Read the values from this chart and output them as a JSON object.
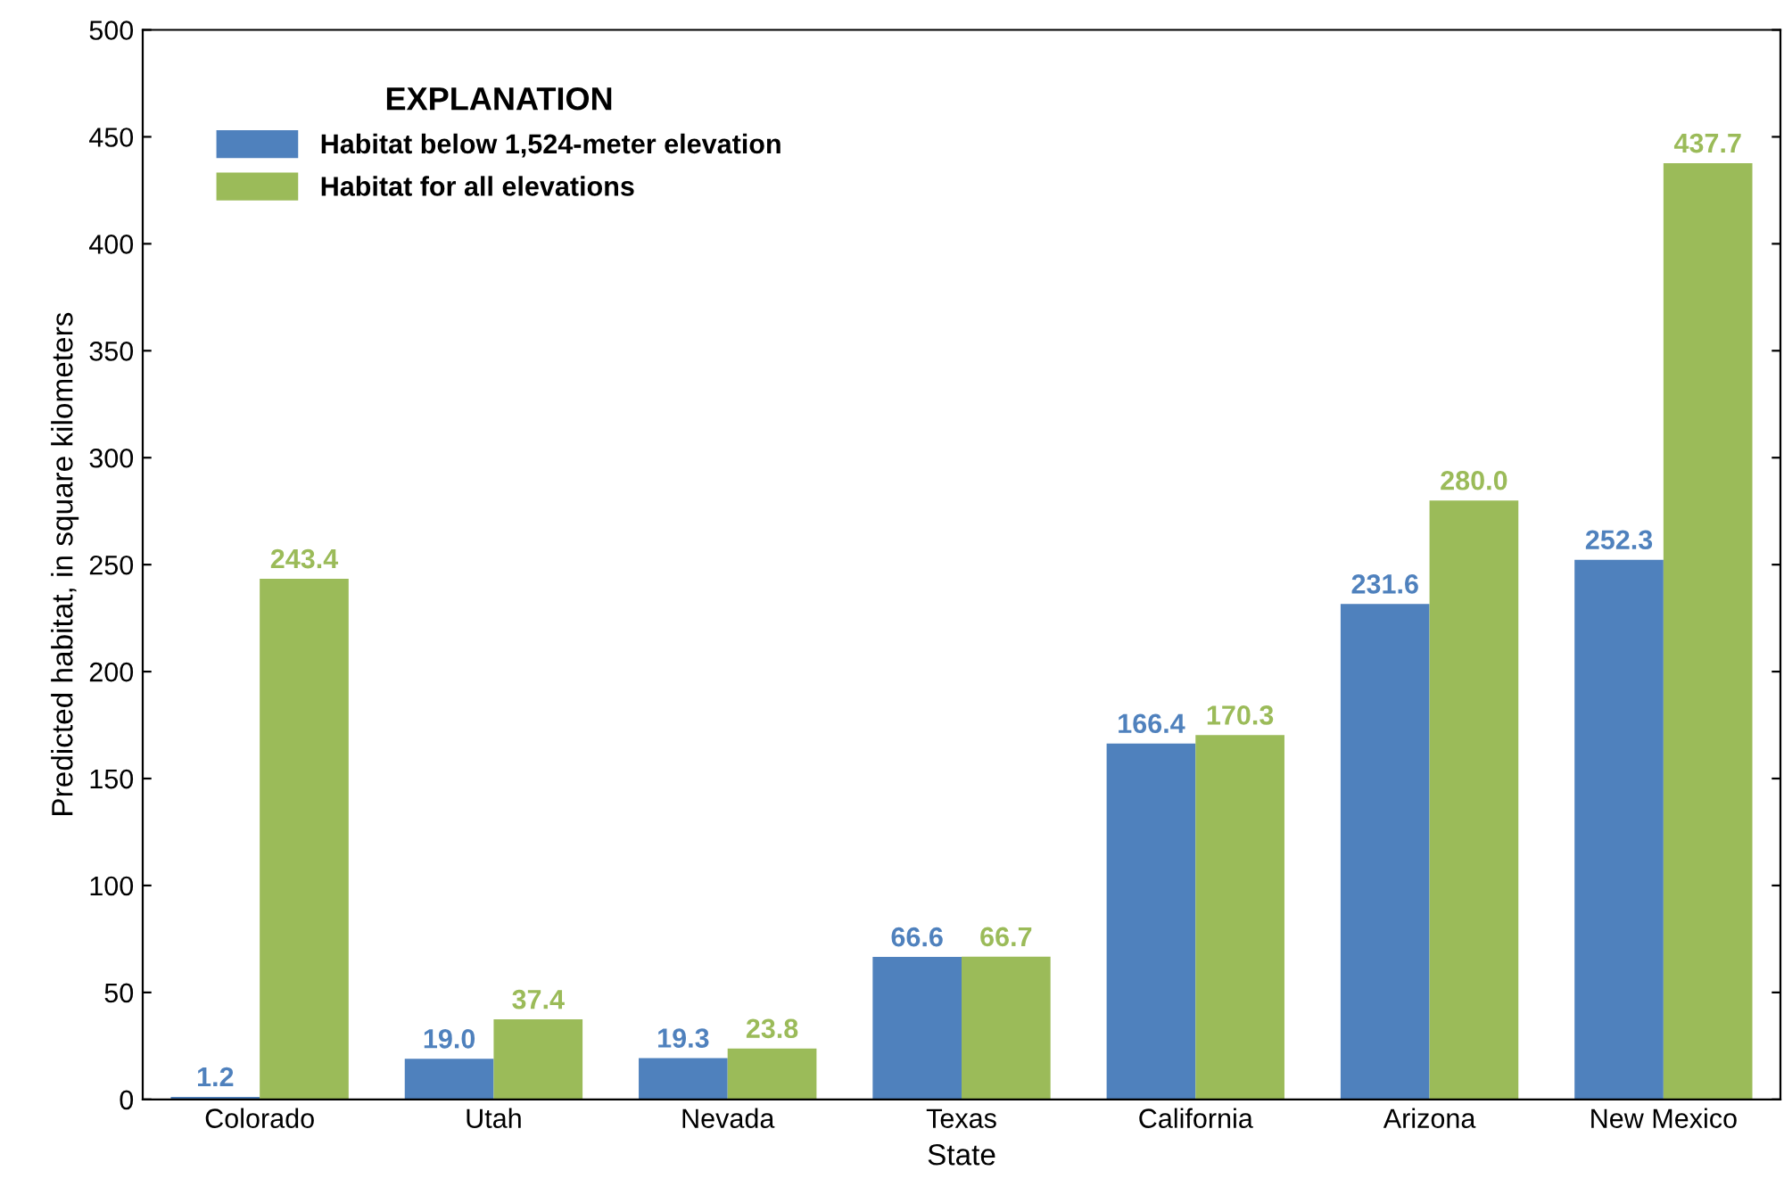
{
  "chart_data": {
    "type": "bar",
    "xlabel": "State",
    "ylabel": "Predicted habitat, in square kilometers",
    "categories": [
      "Colorado",
      "Utah",
      "Nevada",
      "Texas",
      "California",
      "Arizona",
      "New Mexico"
    ],
    "series": [
      {
        "name": "Habitat below 1,524-meter elevation",
        "color": "#4f81bd",
        "values": [
          1.2,
          19.0,
          19.3,
          66.6,
          166.4,
          231.6,
          252.3
        ],
        "value_labels": [
          "1.2",
          "19.0",
          "19.3",
          "66.6",
          "166.4",
          "231.6",
          "252.3"
        ]
      },
      {
        "name": "Habitat for all elevations",
        "color": "#9bbb59",
        "values": [
          243.4,
          37.4,
          23.8,
          66.7,
          170.3,
          280.0,
          437.7
        ],
        "value_labels": [
          "243.4",
          "37.4",
          "23.8",
          "66.7",
          "170.3",
          "280.0",
          "437.7"
        ]
      }
    ],
    "ylim": [
      0,
      500
    ],
    "yticks": [
      0,
      50,
      100,
      150,
      200,
      250,
      300,
      350,
      400,
      450,
      500
    ],
    "legend": "top left",
    "legend_title": "EXPLANATION",
    "grid": false
  }
}
